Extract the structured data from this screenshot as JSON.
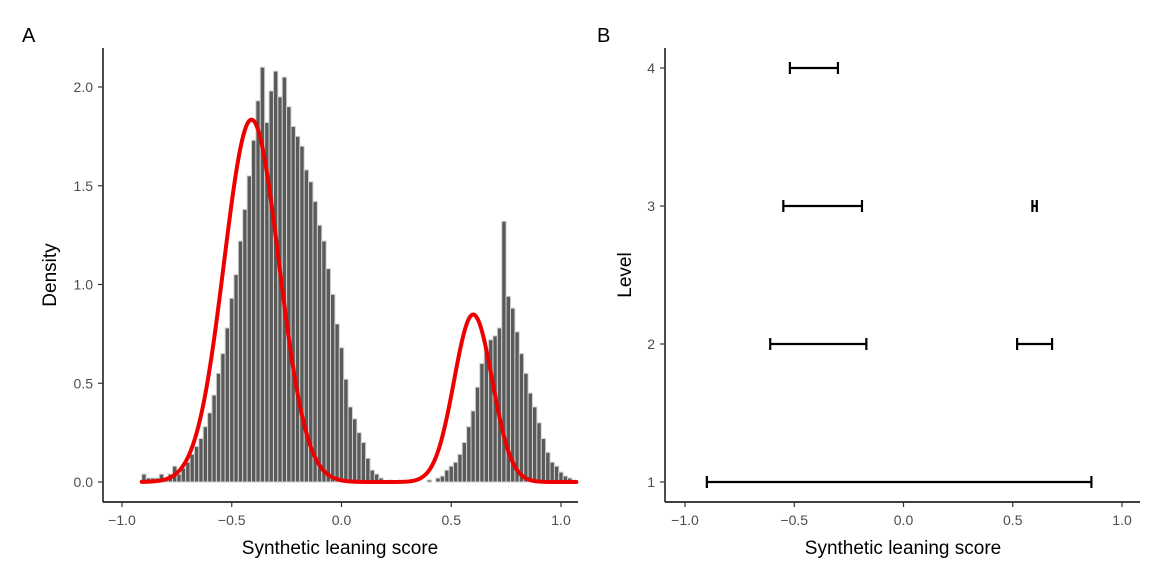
{
  "chart_data": [
    {
      "panel_label": "A",
      "type": "bar",
      "subtype": "histogram-with-density",
      "xlabel": "Synthetic leaning score",
      "ylabel": "Density",
      "xlim": [
        -1.07,
        1.07
      ],
      "ylim": [
        0,
        2.2
      ],
      "x_ticks": [
        -1.0,
        -0.5,
        0.0,
        0.5,
        1.0
      ],
      "x_tick_labels": [
        "−1.0",
        "−0.5",
        "0.0",
        "0.5",
        "1.0"
      ],
      "y_ticks": [
        0,
        0.5,
        1.0,
        1.5,
        2.0
      ],
      "y_tick_labels": [
        "0.0",
        "0.5",
        "1.0",
        "1.5",
        "2.0"
      ],
      "bin_width": 0.02,
      "bins_start": -0.91,
      "bin_heights": [
        0.04,
        0.02,
        0.02,
        0.02,
        0.04,
        0.02,
        0.04,
        0.08,
        0.04,
        0.07,
        0.1,
        0.14,
        0.18,
        0.22,
        0.28,
        0.35,
        0.44,
        0.55,
        0.65,
        0.78,
        0.93,
        1.05,
        1.22,
        1.38,
        1.55,
        1.73,
        1.93,
        2.1,
        1.82,
        1.98,
        2.08,
        1.95,
        2.05,
        1.9,
        1.8,
        1.75,
        1.7,
        1.58,
        1.52,
        1.42,
        1.3,
        1.22,
        1.08,
        0.95,
        0.8,
        0.68,
        0.52,
        0.38,
        0.32,
        0.25,
        0.2,
        0.12,
        0.06,
        0.04,
        0.02,
        0,
        0.01,
        0,
        0,
        0,
        0,
        0,
        0,
        0,
        0,
        0.01,
        0,
        0.02,
        0.03,
        0.06,
        0.08,
        0.1,
        0.14,
        0.2,
        0.28,
        0.36,
        0.48,
        0.6,
        0.68,
        0.72,
        0.74,
        0.78,
        1.32,
        0.94,
        0.88,
        0.76,
        0.65,
        0.55,
        0.45,
        0.38,
        0.3,
        0.22,
        0.15,
        0.1,
        0.08,
        0.05,
        0.03,
        0.02,
        0.01
      ],
      "density_components": [
        {
          "mean": -0.41,
          "sd": 0.125,
          "weight": 0.575
        },
        {
          "mean": 0.6,
          "sd": 0.087,
          "weight": 0.185
        }
      ]
    },
    {
      "panel_label": "B",
      "type": "interval",
      "xlabel": "Synthetic leaning score",
      "ylabel": "Level",
      "xlim": [
        -1.07,
        1.07
      ],
      "x_ticks": [
        -1.0,
        -0.5,
        0.0,
        0.5,
        1.0
      ],
      "x_tick_labels": [
        "−1.0",
        "−0.5",
        "0.0",
        "0.5",
        "1.0"
      ],
      "y_categories": [
        "1",
        "2",
        "3",
        "4"
      ],
      "intervals": [
        {
          "level": "1",
          "low": -0.9,
          "high": 0.86
        },
        {
          "level": "2",
          "low": -0.61,
          "high": -0.17
        },
        {
          "level": "2",
          "low": 0.52,
          "high": 0.68
        },
        {
          "level": "3",
          "low": -0.55,
          "high": -0.19
        },
        {
          "level": "3",
          "low": 0.59,
          "high": 0.61
        },
        {
          "level": "4",
          "low": -0.52,
          "high": -0.3
        }
      ]
    }
  ]
}
